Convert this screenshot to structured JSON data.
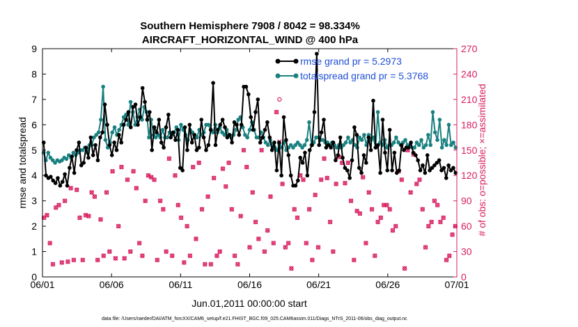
{
  "chart_data": {
    "type": "line",
    "title": "Southern Hemisphere 7908 / 8042 = 98.334%",
    "subtitle": "AIRCRAFT_HORIZONTAL_WIND @ 400 hPa",
    "xlabel": "Jun.01,2011 00:00:00 start",
    "ylabel_left": "rmse and totalspread",
    "ylabel_right": "# of obs: o=possible; ×=assimilated",
    "xlim": [
      0,
      30
    ],
    "ylim_left": [
      0,
      9
    ],
    "ylim_right": [
      0,
      270
    ],
    "x_ticks": [
      0,
      5,
      10,
      15,
      20,
      25,
      30
    ],
    "x_tick_labels": [
      "06/01",
      "06/06",
      "06/11",
      "06/16",
      "06/21",
      "06/26",
      "07/01"
    ],
    "y_left_ticks": [
      0,
      1,
      2,
      3,
      4,
      5,
      6,
      7,
      8,
      9
    ],
    "y_right_ticks": [
      0,
      30,
      60,
      90,
      120,
      150,
      180,
      210,
      240,
      270
    ],
    "colors": {
      "rmse": "#000000",
      "spread": "#1a8080",
      "obs": "#d81b60",
      "right_axis": "#d81b60",
      "legend_text": "#1f4fd6"
    },
    "legend_placement": "top-right",
    "grid": false,
    "series": [
      {
        "name": "rmse grand pr = 5.2973",
        "values": [
          5.3,
          4.0,
          3.9,
          3.95,
          3.8,
          3.7,
          3.9,
          3.6,
          3.75,
          4.05,
          3.6,
          4.3,
          4.75,
          4.1,
          5.0,
          5.3,
          4.4,
          4.5,
          5.1,
          4.7,
          5.5,
          4.8,
          5.2,
          4.6,
          5.5,
          5.7,
          6.8,
          6.0,
          5.2,
          4.8,
          5.3,
          5.0,
          5.6,
          5.3,
          6.0,
          6.2,
          6.5,
          5.9,
          6.7,
          6.8,
          6.0,
          6.3,
          7.45,
          6.9,
          6.2,
          6.5,
          5.0,
          5.9,
          5.7,
          6.2,
          5.3,
          5.1,
          5.9,
          6.4,
          5.5,
          5.7,
          5.4,
          5.8,
          4.3,
          4.2,
          5.9,
          5.0,
          6.0,
          5.3,
          5.6,
          5.0,
          5.1,
          6.2,
          5.5,
          5.0,
          5.2,
          5.8,
          7.65,
          5.2,
          5.8,
          6.0,
          6.2,
          5.9,
          5.5,
          5.6,
          5.3,
          6.1,
          6.0,
          5.6,
          6.0,
          7.5,
          7.5,
          7.2,
          6.3,
          5.8,
          6.5,
          7.0,
          5.3,
          5.5,
          5.8,
          6.1,
          5.5,
          5.0,
          5.3,
          4.2,
          5.3,
          4.0,
          6.3,
          5.4,
          4.8,
          4.0,
          3.6,
          3.6,
          3.8,
          4.7,
          4.5,
          4.9,
          4.0,
          5.0,
          5.2,
          6.5,
          8.8,
          5.2,
          5.7,
          6.2,
          5.1,
          5.2,
          5.1,
          5.3,
          4.6,
          4.8,
          5.5,
          4.7,
          4.3,
          4.2,
          3.9,
          4.6,
          5.9,
          5.6,
          4.3,
          4.1,
          4.8,
          4.5,
          5.5,
          5.0,
          6.95,
          5.1,
          5.2,
          4.1,
          6.2,
          4.9,
          4.2,
          5.8,
          4.2,
          4.9,
          4.1,
          4.2,
          5.2,
          5.0,
          5.1,
          5.1,
          5.3,
          4.9,
          4.8,
          4.6,
          4.2,
          4.4,
          4.1,
          4.8,
          4.2,
          4.3,
          4.4,
          4.5,
          4.6,
          4.2,
          4.3,
          3.9,
          4.4,
          4.2,
          4.3,
          4.1
        ],
        "color": "#000000"
      },
      {
        "name": "totalspread grand pr = 5.3768",
        "values": [
          4.9,
          4.6,
          4.9,
          4.7,
          4.6,
          4.5,
          4.6,
          4.55,
          4.6,
          4.7,
          4.65,
          4.8,
          4.7,
          4.9,
          4.8,
          4.9,
          5.0,
          5.0,
          5.1,
          4.9,
          5.2,
          5.2,
          5.5,
          5.6,
          5.7,
          6.2,
          7.5,
          5.4,
          5.1,
          5.3,
          5.7,
          5.9,
          5.6,
          5.8,
          6.0,
          6.3,
          6.4,
          6.0,
          6.9,
          6.5,
          6.0,
          6.3,
          6.6,
          6.2,
          6.7,
          6.5,
          5.5,
          6.2,
          5.6,
          5.5,
          5.6,
          5.5,
          5.8,
          5.5,
          5.5,
          5.7,
          5.6,
          5.7,
          5.9,
          5.4,
          6.0,
          5.8,
          5.6,
          5.4,
          5.8,
          5.7,
          5.6,
          5.5,
          5.8,
          5.6,
          5.7,
          6.0,
          6.0,
          5.8,
          5.7,
          6.0,
          5.7,
          5.9,
          5.7,
          5.6,
          5.8,
          5.6,
          5.5,
          5.6,
          5.8,
          6.2,
          6.3,
          5.9,
          5.6,
          5.5,
          5.8,
          6.1,
          5.8,
          5.5,
          5.5,
          5.7,
          5.5,
          5.3,
          5.2,
          5.4,
          5.2,
          5.1,
          5.0,
          5.2,
          5.1,
          5.3,
          5.0,
          5.1,
          5.2,
          5.1,
          5.2,
          5.3,
          5.2,
          5.1,
          5.2,
          5.4,
          6.1,
          5.2,
          5.3,
          5.5,
          5.5,
          5.4,
          5.4,
          5.3,
          5.3,
          5.2,
          5.3,
          5.2,
          5.1,
          5.2,
          5.1,
          5.2,
          5.3,
          5.5,
          5.3,
          5.4,
          5.2,
          5.1,
          5.5,
          5.4,
          5.6,
          5.2,
          5.6,
          5.4,
          5.5,
          5.1,
          6.5,
          5.3,
          5.2,
          5.4,
          5.1,
          5.2,
          5.2,
          5.3,
          5.5,
          5.3,
          5.2,
          5.3,
          5.4,
          5.2,
          5.2,
          5.1,
          5.1,
          5.3,
          5.2,
          5.4,
          5.1,
          5.2,
          5.6,
          5.2,
          6.5,
          5.7,
          5.4,
          6.2,
          5.1,
          5.4,
          5.2,
          6.0,
          5.2,
          5.3,
          5.1
        ],
        "color": "#1a8080"
      }
    ],
    "obs_possible": [
      70,
      73,
      40,
      15,
      82,
      85,
      17,
      90,
      18,
      105,
      20,
      103,
      70,
      20,
      73,
      72,
      100,
      95,
      20,
      68,
      25,
      100,
      30,
      125,
      22,
      60,
      130,
      22,
      115,
      30,
      125,
      105,
      40,
      25,
      90,
      120,
      118,
      115,
      20,
      90,
      80,
      30,
      140,
      25,
      120,
      85,
      70,
      17,
      60,
      25,
      130,
      45,
      135,
      80,
      15,
      95,
      15,
      117,
      25,
      30,
      128,
      107,
      135,
      80,
      25,
      15,
      72,
      150,
      130,
      35,
      100,
      65,
      45,
      150,
      30,
      55,
      95,
      40,
      195,
      210,
      110,
      35,
      40,
      10,
      80,
      70,
      120,
      115,
      40,
      80,
      20,
      97,
      35,
      115,
      140,
      117,
      65,
      30,
      110,
      142,
      135,
      111,
      135,
      90,
      20,
      78,
      75,
      118,
      40,
      100,
      80,
      25,
      65,
      70,
      85,
      85,
      80,
      55,
      60,
      125,
      115,
      10,
      150,
      100,
      145,
      110,
      115,
      80,
      35,
      60,
      65,
      90,
      85,
      65,
      70,
      20,
      25,
      50,
      60
    ],
    "obs_assimilated": [
      70,
      73,
      40,
      15,
      82,
      85,
      17,
      90,
      18,
      105,
      20,
      103,
      70,
      20,
      73,
      72,
      100,
      95,
      20,
      68,
      25,
      100,
      30,
      125,
      22,
      60,
      130,
      22,
      115,
      30,
      125,
      105,
      40,
      25,
      90,
      120,
      118,
      115,
      20,
      90,
      80,
      30,
      140,
      25,
      120,
      85,
      70,
      17,
      60,
      25,
      130,
      45,
      135,
      80,
      15,
      95,
      15,
      117,
      25,
      30,
      128,
      107,
      135,
      80,
      25,
      15,
      72,
      150,
      130,
      35,
      100,
      65,
      45,
      150,
      30,
      55,
      95,
      40,
      195,
      160,
      110,
      35,
      40,
      10,
      80,
      70,
      120,
      115,
      40,
      80,
      20,
      97,
      35,
      115,
      140,
      117,
      65,
      30,
      110,
      142,
      135,
      111,
      135,
      90,
      20,
      78,
      75,
      118,
      40,
      100,
      80,
      25,
      65,
      70,
      85,
      85,
      80,
      55,
      60,
      125,
      115,
      10,
      150,
      100,
      145,
      110,
      115,
      80,
      35,
      60,
      65,
      90,
      85,
      65,
      70,
      20,
      25,
      50,
      60
    ]
  },
  "footnote": "data file: /Users/raeder/DAI/ATM_forcXX/CAM6_setup/f.e21.FHIST_BGC.f09_025.CAM6assim.011/Diags_NTrS_2011-06/obs_diag_output.nc"
}
